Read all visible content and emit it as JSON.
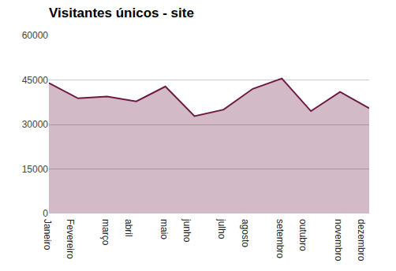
{
  "chart_data": {
    "type": "area",
    "title": "Visitantes únicos - site",
    "categories": [
      "Janeiro",
      "Fevereiro",
      "março",
      "abril",
      "maio",
      "junho",
      "julho",
      "agosto",
      "setembro",
      "outubro",
      "novembro",
      "dezembro"
    ],
    "values": [
      44000,
      38800,
      39400,
      37800,
      42800,
      32800,
      35000,
      42000,
      45500,
      34500,
      41000,
      35500
    ],
    "color": "#6d1a45",
    "ylim": [
      0,
      60000
    ],
    "yticks": [
      0,
      15000,
      30000,
      45000,
      60000
    ],
    "grid": true
  }
}
